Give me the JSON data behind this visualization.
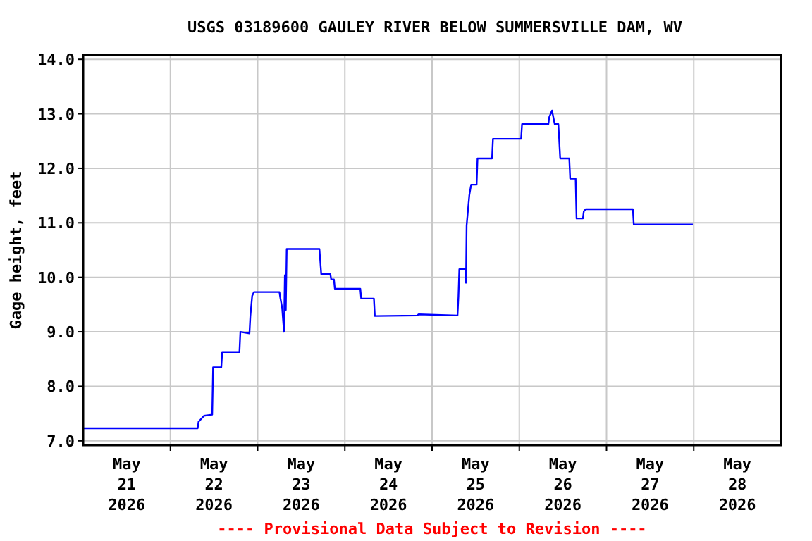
{
  "chart_data": {
    "type": "line",
    "title": "USGS 03189600 GAULEY RIVER BELOW SUMMERSVILLE DAM, WV",
    "ylabel": "Gage height, feet",
    "annotations": [
      "---- Provisional Data Subject to Revision ----"
    ],
    "grid": true,
    "marker": "none",
    "line_style": "solid",
    "xlim": [
      "2026-05-21T00:00",
      "2026-05-29T00:00"
    ],
    "ylim": [
      6.92,
      14.08
    ],
    "xticks": [
      {
        "value": "2026-05-21T12:00",
        "label": "May\n21\n2026"
      },
      {
        "value": "2026-05-22T12:00",
        "label": "May\n22\n2026"
      },
      {
        "value": "2026-05-23T12:00",
        "label": "May\n23\n2026"
      },
      {
        "value": "2026-05-24T12:00",
        "label": "May\n24\n2026"
      },
      {
        "value": "2026-05-25T12:00",
        "label": "May\n25\n2026"
      },
      {
        "value": "2026-05-26T12:00",
        "label": "May\n26\n2026"
      },
      {
        "value": "2026-05-27T12:00",
        "label": "May\n27\n2026"
      },
      {
        "value": "2026-05-28T12:00",
        "label": "May\n28\n2026"
      },
      {
        "value": "2026-05-22T00:00",
        "label": null
      },
      {
        "value": "2026-05-23T00:00",
        "label": null
      },
      {
        "value": "2026-05-24T00:00",
        "label": null
      },
      {
        "value": "2026-05-25T00:00",
        "label": null
      },
      {
        "value": "2026-05-26T00:00",
        "label": null
      },
      {
        "value": "2026-05-27T00:00",
        "label": null
      },
      {
        "value": "2026-05-28T00:00",
        "label": null
      }
    ],
    "yticks": [
      {
        "value": 7,
        "label": "7.0"
      },
      {
        "value": 8,
        "label": "8.0"
      },
      {
        "value": 9,
        "label": "9.0"
      },
      {
        "value": 10,
        "label": "10.0"
      },
      {
        "value": 11,
        "label": "11.0"
      },
      {
        "value": 12,
        "label": "12.0"
      },
      {
        "value": 13,
        "label": "13.0"
      },
      {
        "value": 14,
        "label": "14.0"
      }
    ],
    "series": [
      {
        "color": "#0000ff",
        "x": [
          "2026-05-21T00:00",
          "2026-05-22T07:30",
          "2026-05-22T07:45",
          "2026-05-22T09:15",
          "2026-05-22T11:30",
          "2026-05-22T11:45",
          "2026-05-22T14:00",
          "2026-05-22T14:15",
          "2026-05-22T19:00",
          "2026-05-22T19:15",
          "2026-05-22T21:45",
          "2026-05-22T22:00",
          "2026-05-22T22:30",
          "2026-05-22T23:00",
          "2026-05-23T06:00",
          "2026-05-23T06:15",
          "2026-05-23T06:45",
          "2026-05-23T07:15",
          "2026-05-23T07:30",
          "2026-05-23T07:45",
          "2026-05-23T08:00",
          "2026-05-23T17:00",
          "2026-05-23T17:30",
          "2026-05-23T20:00",
          "2026-05-23T20:15",
          "2026-05-23T21:00",
          "2026-05-23T21:15",
          "2026-05-24T04:15",
          "2026-05-24T04:30",
          "2026-05-24T08:00",
          "2026-05-24T08:15",
          "2026-05-24T20:00",
          "2026-05-24T20:15",
          "2026-05-25T07:00",
          "2026-05-25T07:15",
          "2026-05-25T07:30",
          "2026-05-25T09:15",
          "2026-05-25T09:20",
          "2026-05-25T09:30",
          "2026-05-25T10:15",
          "2026-05-25T10:45",
          "2026-05-25T12:15",
          "2026-05-25T12:30",
          "2026-05-25T16:30",
          "2026-05-25T16:45",
          "2026-05-26T00:30",
          "2026-05-26T00:45",
          "2026-05-26T08:00",
          "2026-05-26T08:15",
          "2026-05-26T09:00",
          "2026-05-26T09:45",
          "2026-05-26T10:45",
          "2026-05-26T11:15",
          "2026-05-26T13:45",
          "2026-05-26T14:00",
          "2026-05-26T15:30",
          "2026-05-26T15:45",
          "2026-05-26T17:30",
          "2026-05-26T17:45",
          "2026-05-26T18:15",
          "2026-05-27T07:15",
          "2026-05-27T07:30",
          "2026-05-27T23:45"
        ],
        "values": [
          7.23,
          7.23,
          7.35,
          7.46,
          7.48,
          8.35,
          8.35,
          8.63,
          8.63,
          9.0,
          8.97,
          9.29,
          9.66,
          9.73,
          9.73,
          9.62,
          9.44,
          9.0,
          10.04,
          9.4,
          10.52,
          10.52,
          10.06,
          10.06,
          9.96,
          9.96,
          9.79,
          9.79,
          9.61,
          9.61,
          9.29,
          9.3,
          9.32,
          9.3,
          9.64,
          10.15,
          10.15,
          9.9,
          10.95,
          11.51,
          11.7,
          11.7,
          12.18,
          12.18,
          12.54,
          12.54,
          12.81,
          12.81,
          12.94,
          13.06,
          12.81,
          12.81,
          12.18,
          12.18,
          11.81,
          11.81,
          11.08,
          11.08,
          11.21,
          11.25,
          11.25,
          10.97,
          10.97
        ]
      }
    ]
  }
}
